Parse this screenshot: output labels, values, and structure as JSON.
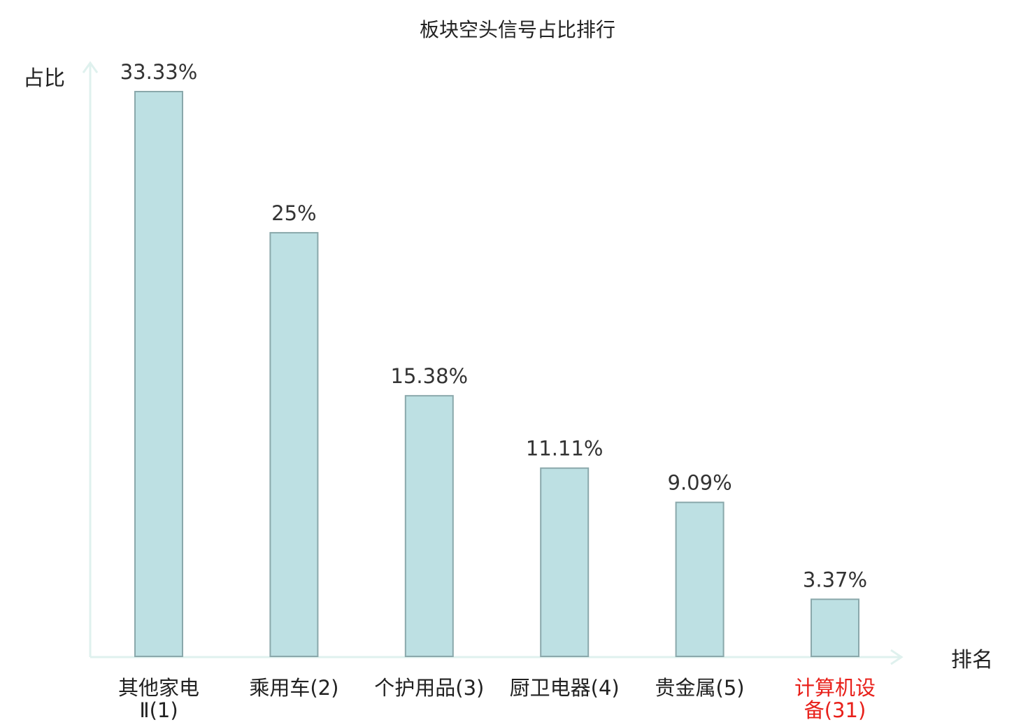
{
  "chart_data": {
    "type": "bar",
    "title": "板块空头信号占比排行",
    "ylabel": "占比",
    "xlabel": "排名",
    "categories": [
      [
        "其他家电",
        "Ⅱ(1)"
      ],
      [
        "乘用车(2)"
      ],
      [
        "个护用品(3)"
      ],
      [
        "厨卫电器(4)"
      ],
      [
        "贵金属(5)"
      ],
      [
        "计算机设",
        "备(31)"
      ]
    ],
    "values": [
      33.33,
      25,
      15.38,
      11.11,
      9.09,
      3.37
    ],
    "value_labels": [
      "33.33%",
      "25%",
      "15.38%",
      "11.11%",
      "9.09%",
      "3.37%"
    ],
    "highlight_index": 5,
    "ylim": [
      0,
      33.33
    ],
    "grid": false,
    "colors": {
      "bar_fill": "#bde0e3",
      "bar_stroke": "#8aa8ab",
      "axis": "#dff1ee",
      "highlight_text": "#e8201a"
    }
  }
}
